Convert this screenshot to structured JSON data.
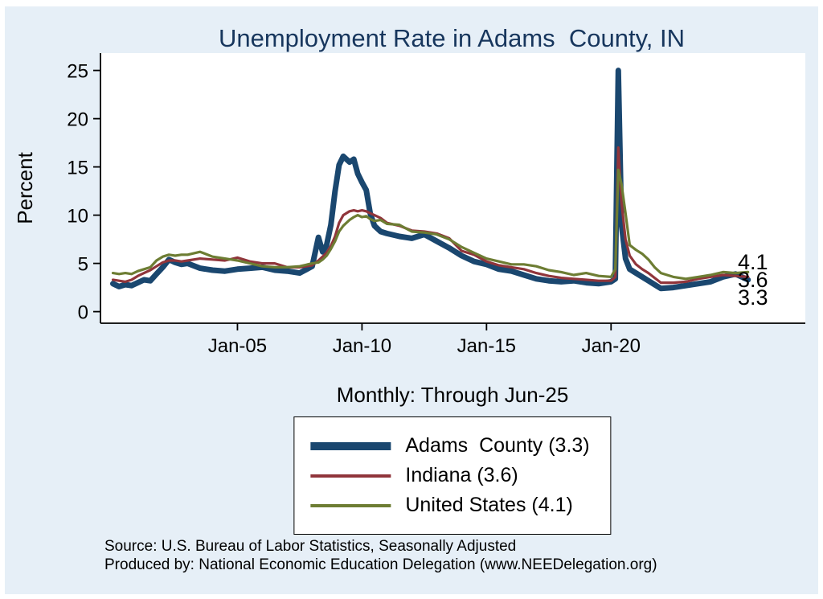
{
  "colors": {
    "background": "#e6eff7",
    "plot_background": "#ffffff",
    "title": "#17365d",
    "axis": "#000000"
  },
  "chart_data": {
    "type": "line",
    "title": "Unemployment Rate in Adams  County, IN",
    "ylabel": "Percent",
    "xlabel_caption": "Monthly: Through Jun-25",
    "grid": false,
    "legend_position": "below-center",
    "ylim": [
      0,
      25
    ],
    "y_ticks": [
      0,
      5,
      10,
      15,
      20,
      25
    ],
    "x_ticks": [
      {
        "label": "Jan-05",
        "year": 2005
      },
      {
        "label": "Jan-10",
        "year": 2010
      },
      {
        "label": "Jan-15",
        "year": 2015
      },
      {
        "label": "Jan-20",
        "year": 2020
      }
    ],
    "x_unit": "decimal year (monthly data, Jan-2000 through Jun-2025)",
    "x": [
      2000,
      2000.25,
      2000.5,
      2000.75,
      2001,
      2001.25,
      2001.5,
      2001.75,
      2002,
      2002.25,
      2002.5,
      2002.75,
      2003,
      2003.5,
      2004,
      2004.5,
      2005,
      2005.5,
      2006,
      2006.5,
      2007,
      2007.5,
      2008,
      2008.25,
      2008.42,
      2008.58,
      2008.75,
      2008.92,
      2009.08,
      2009.25,
      2009.5,
      2009.67,
      2009.83,
      2010,
      2010.17,
      2010.33,
      2010.5,
      2010.75,
      2011,
      2011.5,
      2012,
      2012.5,
      2013,
      2013.5,
      2014,
      2014.5,
      2015,
      2015.5,
      2016,
      2016.5,
      2017,
      2017.5,
      2018,
      2018.5,
      2019,
      2019.5,
      2020,
      2020.17,
      2020.29,
      2020.42,
      2020.58,
      2020.75,
      2021,
      2021.25,
      2021.5,
      2021.75,
      2022,
      2022.5,
      2023,
      2023.5,
      2024,
      2024.5,
      2025,
      2025.5
    ],
    "series": [
      {
        "name": "Adams  County",
        "legend_label": "Adams  County (3.3)",
        "latest_value": 3.3,
        "color": "#1a476f",
        "line_width": 7,
        "values": [
          2.9,
          2.6,
          2.8,
          2.7,
          3.0,
          3.3,
          3.2,
          3.9,
          4.6,
          5.4,
          5.1,
          4.9,
          5.0,
          4.5,
          4.3,
          4.2,
          4.4,
          4.5,
          4.6,
          4.3,
          4.2,
          4.0,
          4.7,
          7.7,
          6.2,
          6.9,
          9.0,
          12.5,
          15.2,
          16.1,
          15.5,
          15.8,
          14.3,
          13.4,
          12.6,
          10.2,
          8.9,
          8.3,
          8.1,
          7.8,
          7.6,
          8.0,
          7.3,
          6.6,
          5.8,
          5.2,
          4.9,
          4.4,
          4.2,
          3.8,
          3.4,
          3.2,
          3.1,
          3.2,
          3.0,
          2.9,
          3.1,
          3.4,
          25.0,
          9.0,
          5.5,
          4.4,
          4.0,
          3.6,
          3.2,
          2.8,
          2.4,
          2.5,
          2.7,
          2.9,
          3.1,
          3.6,
          3.9,
          3.3
        ]
      },
      {
        "name": "Indiana",
        "legend_label": "Indiana (3.6)",
        "latest_value": 3.6,
        "color": "#90353b",
        "line_width": 3.2,
        "values": [
          3.3,
          3.2,
          3.1,
          3.3,
          3.7,
          4.0,
          4.3,
          4.7,
          5.1,
          5.3,
          5.3,
          5.2,
          5.3,
          5.5,
          5.4,
          5.3,
          5.6,
          5.2,
          5.0,
          5.0,
          4.6,
          4.6,
          4.8,
          5.3,
          5.7,
          6.1,
          6.8,
          7.8,
          9.2,
          10.0,
          10.4,
          10.5,
          10.4,
          10.5,
          10.4,
          10.2,
          10.0,
          9.7,
          9.2,
          8.9,
          8.4,
          8.3,
          8.1,
          7.6,
          6.3,
          5.9,
          5.2,
          4.8,
          4.6,
          4.4,
          4.0,
          3.7,
          3.5,
          3.4,
          3.3,
          3.2,
          3.2,
          3.6,
          17.0,
          11.3,
          7.5,
          5.8,
          4.9,
          4.4,
          4.0,
          3.5,
          3.0,
          3.0,
          3.1,
          3.4,
          3.6,
          3.8,
          3.7,
          3.6
        ]
      },
      {
        "name": "United States",
        "legend_label": "United States (4.1)",
        "latest_value": 4.1,
        "color": "#6d7d33",
        "line_width": 3.2,
        "values": [
          4.0,
          3.9,
          4.0,
          3.9,
          4.2,
          4.4,
          4.6,
          5.3,
          5.7,
          5.9,
          5.8,
          5.9,
          5.9,
          6.2,
          5.7,
          5.5,
          5.3,
          5.0,
          4.7,
          4.6,
          4.6,
          4.7,
          5.0,
          5.1,
          5.4,
          5.8,
          6.5,
          7.3,
          8.3,
          8.9,
          9.5,
          9.8,
          10.0,
          9.8,
          9.9,
          9.6,
          9.4,
          9.5,
          9.1,
          9.0,
          8.3,
          8.2,
          8.0,
          7.5,
          6.7,
          6.1,
          5.5,
          5.2,
          4.9,
          4.9,
          4.7,
          4.3,
          4.1,
          3.8,
          4.0,
          3.7,
          3.6,
          4.4,
          14.7,
          13.2,
          10.2,
          6.9,
          6.4,
          6.0,
          5.4,
          4.6,
          4.0,
          3.6,
          3.4,
          3.6,
          3.8,
          4.1,
          4.0,
          4.1
        ]
      }
    ],
    "end_labels": [
      {
        "text": "4.1"
      },
      {
        "text": "3.6"
      },
      {
        "text": "3.3"
      }
    ]
  },
  "source": {
    "line1": "Source: U.S. Bureau of Labor Statistics, Seasonally Adjusted",
    "line2": "Produced by: National Economic Education Delegation (www.NEEDelegation.org)"
  }
}
